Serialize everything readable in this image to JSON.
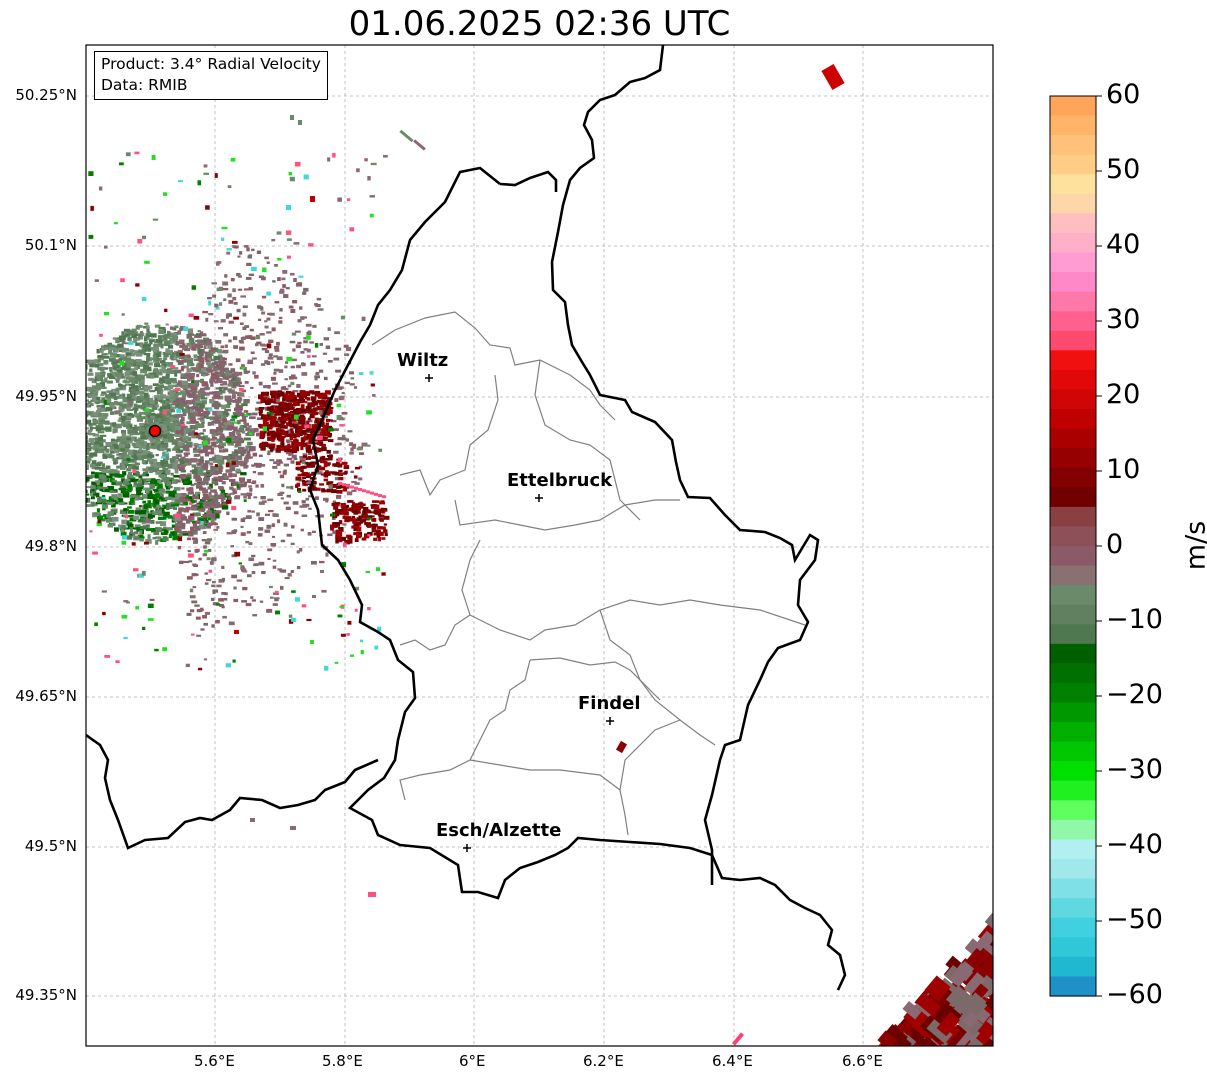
{
  "title": "01.06.2025 02:36 UTC",
  "info": {
    "product": "Product: 3.4° Radial Velocity",
    "data": "Data: RMIB"
  },
  "axes": {
    "lat_ticks": [
      "50.25°N",
      "50.1°N",
      "49.95°N",
      "49.8°N",
      "49.65°N",
      "49.5°N",
      "49.35°N"
    ],
    "lon_ticks": [
      "5.6°E",
      "5.8°E",
      "6°E",
      "6.2°E",
      "6.4°E",
      "6.6°E"
    ]
  },
  "cities": [
    {
      "name": "Wiltz"
    },
    {
      "name": "Ettelbruck"
    },
    {
      "name": "Findel"
    },
    {
      "name": "Esch/Alzette"
    }
  ],
  "colorbar": {
    "unit": "m/s",
    "ticks": [
      "60",
      "50",
      "40",
      "30",
      "20",
      "10",
      "0",
      "−10",
      "−20",
      "−30",
      "−40",
      "−50",
      "−60"
    ],
    "colors": [
      "#ffa55a",
      "#ffb46a",
      "#ffc27a",
      "#ffcd85",
      "#ffe19e",
      "#ffd6a8",
      "#ffbfc0",
      "#ffb0c8",
      "#ff9dd2",
      "#ff88c8",
      "#ff78a8",
      "#ff6090",
      "#ff4a70",
      "#f01010",
      "#e00808",
      "#d00505",
      "#c00000",
      "#aa0000",
      "#960000",
      "#820000",
      "#700000",
      "#8a4040",
      "#8e5058",
      "#8a5a68",
      "#8a7070",
      "#6a8a6a",
      "#608060",
      "#507850",
      "#006000",
      "#007000",
      "#008000",
      "#009800",
      "#00b000",
      "#00c800",
      "#00e000",
      "#20f020",
      "#60ff60",
      "#90f8a8",
      "#b0f0f0",
      "#a0e8ec",
      "#80e0e8",
      "#60d8e0",
      "#40d0e0",
      "#30c8d8",
      "#20b8d0",
      "#2090c8"
    ]
  },
  "radar_site": {
    "color": "#ff0000"
  }
}
